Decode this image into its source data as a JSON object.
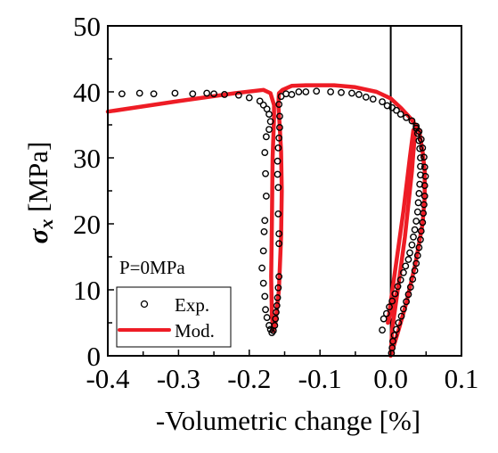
{
  "chart_data": {
    "type": "scatter",
    "title": "",
    "xlabel": "-Volumetric change [%]",
    "ylabel_symbol": "σ",
    "ylabel_subscript": "x",
    "ylabel_unit": " [MPa]",
    "xlim": [
      -0.4,
      0.1
    ],
    "ylim": [
      0,
      50
    ],
    "xticks": [
      -0.4,
      -0.3,
      -0.2,
      -0.1,
      0.0,
      0.1
    ],
    "xtick_labels": [
      "-0.4",
      "-0.3",
      "-0.2",
      "-0.1",
      "0.0",
      "0.1"
    ],
    "yticks": [
      0,
      10,
      20,
      30,
      40,
      50
    ],
    "ytick_labels": [
      "0",
      "10",
      "20",
      "30",
      "40",
      "50"
    ],
    "zero_line_x": 0.0,
    "grid": false,
    "legend": {
      "title": "P=0MPa",
      "placement": "lower-left",
      "entries": [
        {
          "label": "Exp.",
          "marker": "open-circle",
          "color": "#000000"
        },
        {
          "label": "Mod.",
          "marker": "line",
          "color": "#ee1c25"
        }
      ]
    },
    "series": [
      {
        "name": "Exp.",
        "kind": "scatter",
        "color": "#000000",
        "points": [
          [
            -0.38,
            39.7
          ],
          [
            -0.355,
            39.8
          ],
          [
            -0.335,
            39.7
          ],
          [
            -0.305,
            39.8
          ],
          [
            -0.28,
            39.7
          ],
          [
            -0.26,
            39.8
          ],
          [
            -0.25,
            39.7
          ],
          [
            -0.235,
            39.6
          ],
          [
            -0.215,
            39.5
          ],
          [
            -0.2,
            39.1
          ],
          [
            -0.185,
            38.6
          ],
          [
            -0.18,
            38.0
          ],
          [
            -0.175,
            37.4
          ],
          [
            -0.172,
            36.6
          ],
          [
            -0.17,
            35.5
          ],
          [
            -0.172,
            34.3
          ],
          [
            -0.176,
            33.2
          ],
          [
            -0.178,
            30.8
          ],
          [
            -0.177,
            27.6
          ],
          [
            -0.176,
            24.2
          ],
          [
            -0.178,
            20.5
          ],
          [
            -0.179,
            18.8
          ],
          [
            -0.18,
            15.9
          ],
          [
            -0.182,
            13.3
          ],
          [
            -0.18,
            11.0
          ],
          [
            -0.178,
            9.0
          ],
          [
            -0.177,
            7.0
          ],
          [
            -0.175,
            5.8
          ],
          [
            -0.172,
            4.6
          ],
          [
            -0.17,
            4.0
          ],
          [
            -0.168,
            3.5
          ],
          [
            -0.166,
            3.8
          ],
          [
            -0.164,
            4.6
          ],
          [
            -0.163,
            5.6
          ],
          [
            -0.162,
            6.6
          ],
          [
            -0.161,
            7.6
          ],
          [
            -0.16,
            8.8
          ],
          [
            -0.159,
            10.3
          ],
          [
            -0.158,
            12.0
          ],
          [
            -0.158,
            17.0
          ],
          [
            -0.158,
            18.5
          ],
          [
            -0.159,
            21.5
          ],
          [
            -0.159,
            25.5
          ],
          [
            -0.16,
            27.5
          ],
          [
            -0.16,
            29.5
          ],
          [
            -0.159,
            31.5
          ],
          [
            -0.158,
            33.0
          ],
          [
            -0.157,
            34.6
          ],
          [
            -0.157,
            36.3
          ],
          [
            -0.158,
            38.1
          ],
          [
            -0.155,
            39.3
          ],
          [
            -0.148,
            39.7
          ],
          [
            -0.14,
            39.6
          ],
          [
            -0.13,
            40.0
          ],
          [
            -0.12,
            40.0
          ],
          [
            -0.105,
            40.1
          ],
          [
            -0.085,
            40.0
          ],
          [
            -0.07,
            39.9
          ],
          [
            -0.055,
            39.8
          ],
          [
            -0.045,
            39.6
          ],
          [
            -0.035,
            39.2
          ],
          [
            -0.025,
            38.9
          ],
          [
            -0.012,
            38.5
          ],
          [
            -0.005,
            37.9
          ],
          [
            0.002,
            37.6
          ],
          [
            0.008,
            37.2
          ],
          [
            0.014,
            36.6
          ],
          [
            0.022,
            36.1
          ],
          [
            0.03,
            35.6
          ],
          [
            0.036,
            34.8
          ],
          [
            0.04,
            34.0
          ],
          [
            0.043,
            32.8
          ],
          [
            0.045,
            31.5
          ],
          [
            0.047,
            30.1
          ],
          [
            0.048,
            28.6
          ],
          [
            0.049,
            27.2
          ],
          [
            0.048,
            25.8
          ],
          [
            0.048,
            24.2
          ],
          [
            0.047,
            22.9
          ],
          [
            0.046,
            21.6
          ],
          [
            0.045,
            20.2
          ],
          [
            0.043,
            18.9
          ],
          [
            0.042,
            17.6
          ],
          [
            0.04,
            16.4
          ],
          [
            0.038,
            15.2
          ],
          [
            0.036,
            14.0
          ],
          [
            0.034,
            12.9
          ],
          [
            0.031,
            11.6
          ],
          [
            0.028,
            10.4
          ],
          [
            0.025,
            9.3
          ],
          [
            0.022,
            8.2
          ],
          [
            0.018,
            7.1
          ],
          [
            0.015,
            6.0
          ],
          [
            0.011,
            5.0
          ],
          [
            0.008,
            4.0
          ],
          [
            0.005,
            3.1
          ],
          [
            0.003,
            2.2
          ],
          [
            0.002,
            1.2
          ],
          [
            0.001,
            0.4
          ],
          [
            -0.012,
            3.9
          ],
          [
            -0.01,
            5.6
          ],
          [
            -0.006,
            6.4
          ],
          [
            -0.002,
            7.4
          ],
          [
            0.002,
            8.3
          ],
          [
            0.006,
            9.4
          ],
          [
            0.01,
            10.5
          ],
          [
            0.014,
            11.5
          ],
          [
            0.018,
            12.6
          ],
          [
            0.021,
            13.6
          ],
          [
            0.025,
            14.6
          ],
          [
            0.027,
            15.6
          ],
          [
            0.03,
            16.8
          ],
          [
            0.032,
            18.0
          ],
          [
            0.034,
            19.1
          ],
          [
            0.036,
            20.4
          ],
          [
            0.038,
            21.8
          ],
          [
            0.039,
            23.2
          ],
          [
            0.04,
            24.6
          ],
          [
            0.041,
            26.0
          ],
          [
            0.042,
            27.4
          ],
          [
            0.042,
            28.7
          ],
          [
            0.042,
            30.0
          ],
          [
            0.041,
            31.4
          ],
          [
            0.04,
            32.6
          ],
          [
            0.038,
            33.7
          ],
          [
            0.036,
            34.5
          ]
        ]
      },
      {
        "name": "Mod.",
        "kind": "line",
        "color": "#ee1c25",
        "points": [
          [
            -0.4,
            37.0
          ],
          [
            -0.3,
            38.6
          ],
          [
            -0.22,
            39.8
          ],
          [
            -0.18,
            40.3
          ],
          [
            -0.17,
            39.8
          ],
          [
            -0.165,
            38.0
          ],
          [
            -0.165,
            36.0
          ],
          [
            -0.167,
            30.0
          ],
          [
            -0.168,
            20.0
          ],
          [
            -0.169,
            12.0
          ],
          [
            -0.168,
            6.0
          ],
          [
            -0.166,
            3.8
          ],
          [
            -0.163,
            5.0
          ],
          [
            -0.158,
            10.0
          ],
          [
            -0.155,
            18.0
          ],
          [
            -0.154,
            25.0
          ],
          [
            -0.155,
            31.0
          ],
          [
            -0.157,
            35.0
          ],
          [
            -0.159,
            38.0
          ],
          [
            -0.158,
            39.8
          ],
          [
            -0.153,
            40.3
          ],
          [
            -0.14,
            40.9
          ],
          [
            -0.12,
            41.0
          ],
          [
            -0.08,
            41.0
          ],
          [
            -0.05,
            40.7
          ],
          [
            -0.02,
            40.0
          ],
          [
            0.0,
            39.0
          ],
          [
            0.015,
            37.5
          ],
          [
            0.028,
            36.0
          ],
          [
            0.04,
            34.2
          ],
          [
            0.045,
            31.0
          ],
          [
            0.048,
            28.0
          ],
          [
            0.048,
            24.0
          ],
          [
            0.045,
            20.0
          ],
          [
            0.035,
            14.0
          ],
          [
            0.022,
            8.0
          ],
          [
            0.01,
            3.5
          ],
          [
            0.0,
            0.0
          ],
          [
            0.002,
            4.0
          ],
          [
            0.01,
            10.0
          ],
          [
            0.02,
            18.0
          ],
          [
            0.028,
            26.0
          ],
          [
            0.033,
            32.0
          ],
          [
            0.035,
            35.0
          ],
          [
            0.03,
            28.0
          ],
          [
            0.02,
            18.0
          ],
          [
            0.01,
            10.0
          ],
          [
            -0.004,
            5.0
          ],
          [
            0.005,
            12.0
          ],
          [
            0.018,
            22.0
          ],
          [
            0.027,
            30.0
          ],
          [
            0.032,
            34.2
          ]
        ]
      }
    ]
  }
}
